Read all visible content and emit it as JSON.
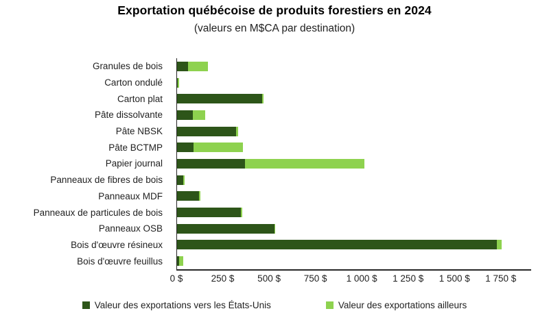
{
  "title": "Exportation québécoise de produits forestiers en 2024",
  "subtitle": "(valeurs en M$CA par destination)",
  "colors": {
    "us_series": "#2d5519",
    "others_series": "#8ed24f",
    "axis": "#262626",
    "text": "#1f1f1f",
    "title_text": "#000000",
    "background": "#ffffff"
  },
  "chart_data": {
    "type": "bar",
    "orientation": "horizontal",
    "stacked": true,
    "title": "Exportation québécoise de produits forestiers en 2024",
    "subtitle": "(valeurs en M$CA par destination)",
    "unit": "M$CA",
    "categories": [
      "Granules de bois",
      "Carton ondulé",
      "Carton plat",
      "Pâte dissolvante",
      "Pâte NBSK",
      "Pâte BCTMP",
      "Papier journal",
      "Panneaux de fibres de bois",
      "Panneaux MDF",
      "Panneaux de particules de bois",
      "Panneaux OSB",
      "Bois d'œuvre résineux",
      "Bois d'œuvre feuillus"
    ],
    "series": [
      {
        "name": "Valeur des exportations vers les États-Unis",
        "color": "#2d5519",
        "values": [
          60,
          5,
          460,
          85,
          320,
          90,
          365,
          35,
          120,
          345,
          525,
          1725,
          10
        ]
      },
      {
        "name": "Valeur des exportations ailleurs",
        "color": "#8ed24f",
        "values": [
          105,
          5,
          5,
          65,
          10,
          265,
          645,
          5,
          5,
          5,
          5,
          25,
          25
        ]
      }
    ],
    "x_ticks": [
      "0 $",
      "250 $",
      "500 $",
      "750 $",
      "1 000 $",
      "1 250 $",
      "1 500 $",
      "1 750 $"
    ],
    "x_tick_values": [
      0,
      250,
      500,
      750,
      1000,
      1250,
      1500,
      1750
    ],
    "xlim": [
      0,
      1910
    ],
    "grid": false,
    "legend_position": "bottom"
  }
}
